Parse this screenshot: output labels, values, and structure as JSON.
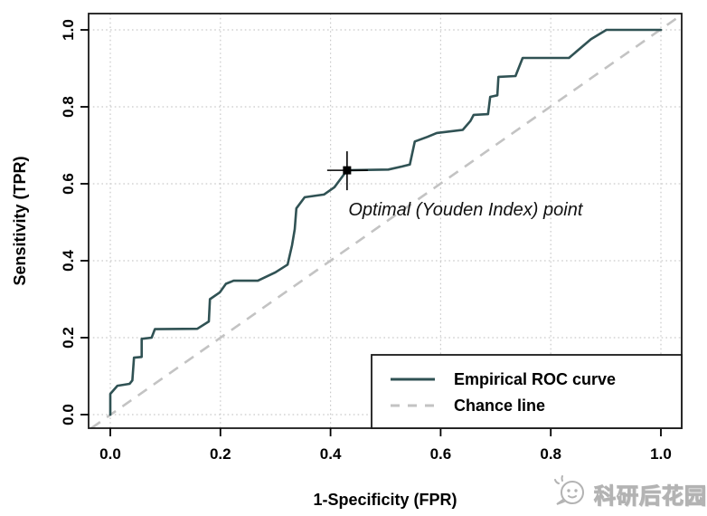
{
  "watermark": {
    "text": "科研后花园",
    "icon": "chat-bubble-face-icon"
  },
  "chart_data": {
    "type": "line",
    "title": "",
    "xlabel": "1-Specificity (FPR)",
    "ylabel": "Sensitivity (TPR)",
    "xlim": [
      0,
      1
    ],
    "ylim": [
      0,
      1
    ],
    "xtick_labels": [
      "0.0",
      "0.2",
      "0.4",
      "0.6",
      "0.8",
      "1.0"
    ],
    "ytick_labels": [
      "0.0",
      "0.2",
      "0.4",
      "0.6",
      "0.8",
      "1.0"
    ],
    "grid": "dotted",
    "legend_position": "bottomright",
    "series": [
      {
        "name": "Empirical ROC curve",
        "style": "solid",
        "color": "#305254",
        "points": [
          [
            0,
            0
          ],
          [
            0,
            0.054
          ],
          [
            0.013,
            0.075
          ],
          [
            0.035,
            0.08
          ],
          [
            0.04,
            0.089
          ],
          [
            0.043,
            0.148
          ],
          [
            0.057,
            0.15
          ],
          [
            0.057,
            0.197
          ],
          [
            0.075,
            0.2
          ],
          [
            0.081,
            0.222
          ],
          [
            0.158,
            0.223
          ],
          [
            0.179,
            0.242
          ],
          [
            0.181,
            0.3
          ],
          [
            0.199,
            0.318
          ],
          [
            0.21,
            0.34
          ],
          [
            0.224,
            0.348
          ],
          [
            0.268,
            0.348
          ],
          [
            0.3,
            0.37
          ],
          [
            0.322,
            0.39
          ],
          [
            0.33,
            0.44
          ],
          [
            0.335,
            0.482
          ],
          [
            0.338,
            0.536
          ],
          [
            0.353,
            0.565
          ],
          [
            0.388,
            0.572
          ],
          [
            0.407,
            0.591
          ],
          [
            0.43,
            0.635
          ],
          [
            0.505,
            0.637
          ],
          [
            0.53,
            0.645
          ],
          [
            0.544,
            0.65
          ],
          [
            0.553,
            0.71
          ],
          [
            0.576,
            0.722
          ],
          [
            0.593,
            0.732
          ],
          [
            0.64,
            0.74
          ],
          [
            0.654,
            0.763
          ],
          [
            0.66,
            0.779
          ],
          [
            0.686,
            0.781
          ],
          [
            0.69,
            0.826
          ],
          [
            0.703,
            0.83
          ],
          [
            0.705,
            0.878
          ],
          [
            0.736,
            0.88
          ],
          [
            0.749,
            0.927
          ],
          [
            0.833,
            0.927
          ],
          [
            0.873,
            0.976
          ],
          [
            0.901,
            1
          ],
          [
            1,
            1
          ]
        ]
      },
      {
        "name": "Chance line",
        "style": "dashed",
        "color": "#c3c3c3",
        "points": [
          [
            0,
            0
          ],
          [
            1,
            1
          ]
        ]
      }
    ],
    "annotations": [
      {
        "label": "Optimal (Youden Index) point",
        "x": 0.43,
        "y": 0.635,
        "marker": "filled-square-with-crosshair"
      }
    ],
    "colors": {
      "grid": "#c9c9c9",
      "box": "#1a1a1a",
      "text": "#000000",
      "marker": "#000000"
    }
  }
}
